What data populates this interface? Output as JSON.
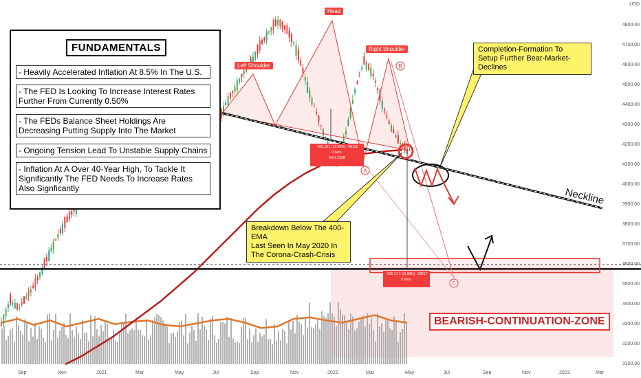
{
  "chart_data": {
    "type": "candlestick",
    "instrument_currency": "USD",
    "y_axis": {
      "ticks": [
        "4800.00",
        "4700.00",
        "4600.00",
        "4500.00",
        "4400.00",
        "4300.00",
        "4200.00",
        "4100.00",
        "4000.00",
        "3900.00",
        "3800.00",
        "3700.00",
        "3600.00",
        "3500.00",
        "3400.00",
        "3300.00",
        "3200.00",
        "3100.00"
      ],
      "range": [
        3100,
        4850
      ]
    },
    "x_axis": {
      "ticks": [
        "Sep",
        "Nov",
        "2021",
        "Mar",
        "May",
        "Jul",
        "Sep",
        "Nov",
        "2022",
        "Mar",
        "May",
        "Jul",
        "Sep",
        "Nov",
        "2023",
        "Mar"
      ]
    },
    "price_path": [
      3300,
      3420,
      3380,
      3440,
      3510,
      3600,
      3700,
      3780,
      3850,
      3900,
      3980,
      4020,
      4080,
      4120,
      4180,
      4230,
      4280,
      4330,
      4380,
      4420,
      4450,
      4520,
      4480,
      4560,
      4420,
      4300,
      4410,
      4480,
      4560,
      4620,
      4700,
      4770,
      4820,
      4780,
      4700,
      4560,
      4420,
      4300,
      4180,
      4120,
      4280,
      4480,
      4620,
      4560,
      4420,
      4300,
      4220,
      4170
    ],
    "ema_400": [
      3100,
      3140,
      3190,
      3240,
      3300,
      3360,
      3420,
      3490,
      3560,
      3640,
      3720,
      3800,
      3880,
      3950,
      4010,
      4060,
      4100,
      4130,
      4150,
      4160,
      4170,
      4175
    ],
    "volume_ma": [
      0.55,
      0.6,
      0.52,
      0.58,
      0.5,
      0.55,
      0.6,
      0.53,
      0.56,
      0.58,
      0.52,
      0.5,
      0.54,
      0.58,
      0.6,
      0.55,
      0.48,
      0.5,
      0.6,
      0.62,
      0.58,
      0.55,
      0.6,
      0.65,
      0.58,
      0.55
    ],
    "annotations": {
      "head": "Head",
      "left_shoulder": "Left Shoulder",
      "right_shoulder": "Right Shoulder",
      "neckline": "Neckline",
      "zone": "BEARISH-CONTINUATION-ZONE",
      "point_a": "A",
      "point_b": "B",
      "point_c": "C",
      "drop_info_1": {
        "line1": "−601.32 (−12.46%) −60132",
        "line2": "0 bars,",
        "line3": "Vol 2.162B"
      },
      "drop_info_2": {
        "line1": "−535.17 (−12.99%) −53517",
        "line2": "0 bars,"
      }
    },
    "callouts": {
      "completion": "Completion-Formation To\nSetup Further Bear-Market-Declines",
      "breakdown": "Breakdown Below The 400-EMA\nLast Seen In May 2020 In\nThe Corona-Crash-Crisis"
    },
    "colors": {
      "ema": "#b71c1c",
      "pattern": "#e53935",
      "zone_fill": "#fbe3e6",
      "callout": "#fff36b",
      "volume": "#b0b0b0",
      "volume_ma": "#e0762a"
    }
  },
  "fundamentals": {
    "title": "FUNDAMENTALS",
    "items": [
      "- Heavily Accelerated Inflation At 8.5% In The U.S.",
      "- The FED Is Looking To Increase Interest Rates Further From Currently 0.50%",
      "- The FEDs Balance Sheet Holdings Are Decreasing Putting Supply Into The Market",
      "- Ongoing Tension Lead To Unstable Supply Chains",
      "- Inflation At A Over 40-Year High, To Tackle It Significantly The FED Needs To Increase Rates Also Signficantly"
    ]
  }
}
